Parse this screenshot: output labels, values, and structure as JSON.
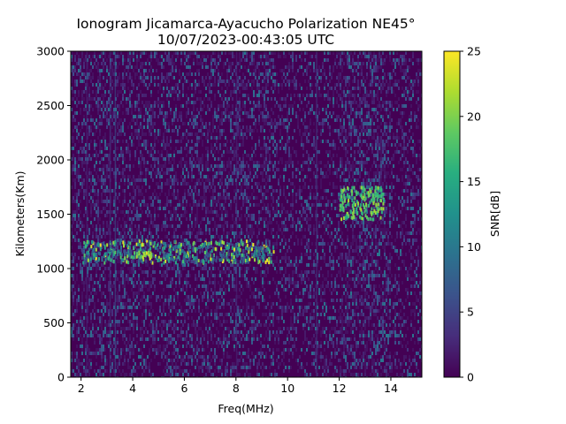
{
  "chart_data": {
    "type": "heatmap",
    "title": "Ionogram Jicamarca-Ayacucho Polarization NE45°",
    "subtitle": "10/07/2023-00:43:05 UTC",
    "xlabel": "Freq(MHz)",
    "ylabel": "Kilometers(Km)",
    "xlim": [
      1.6,
      15.2
    ],
    "ylim": [
      0,
      3000
    ],
    "x_ticks": [
      2,
      4,
      6,
      8,
      10,
      12,
      14
    ],
    "y_ticks": [
      0,
      500,
      1000,
      1500,
      2000,
      2500,
      3000
    ],
    "colorbar": {
      "label": "SNR[dB]",
      "range": [
        0,
        25
      ],
      "ticks": [
        0,
        5,
        10,
        15,
        20,
        25
      ],
      "colormap": "viridis"
    },
    "grid": false,
    "features": [
      {
        "name": "dense echo band",
        "freq_range_mhz": [
          2.0,
          9.5
        ],
        "range_km": [
          1050,
          1250
        ],
        "snr_db": [
          5,
          25
        ]
      },
      {
        "name": "strong streak",
        "freq_range_mhz": [
          4.0,
          4.7
        ],
        "range_km": [
          1100,
          1150
        ],
        "snr_db": [
          18,
          24
        ]
      },
      {
        "name": "bright patches",
        "freq_range_mhz": [
          12.0,
          13.7
        ],
        "range_km": [
          1450,
          1750
        ],
        "snr_db": [
          15,
          22
        ]
      },
      {
        "name": "vertical interference lines",
        "freq_mhz": [
          2.2,
          3.1,
          3.3,
          8.0,
          11.1
        ],
        "snr_db": [
          3,
          10
        ]
      }
    ]
  }
}
